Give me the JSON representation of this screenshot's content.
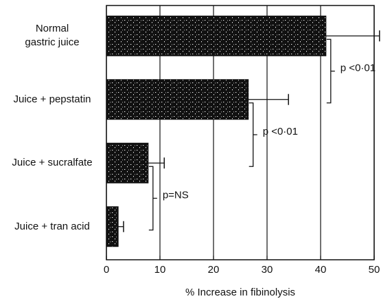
{
  "chart_data": {
    "type": "bar",
    "orientation": "horizontal",
    "categories": [
      "Normal\ngastric juice",
      "Juice + pepstatin",
      "Juice + sucralfate",
      "Juice + tran acid"
    ],
    "values": [
      41,
      26.5,
      7.8,
      2.2
    ],
    "errors": [
      10,
      7.5,
      3,
      1
    ],
    "color": "#111111",
    "xlabel": "% Increase in fibinolysis",
    "xlim": [
      0,
      50
    ],
    "xticks": [
      0,
      10,
      20,
      30,
      40,
      50
    ],
    "grid": true,
    "annotations": [
      "p <0·01",
      "p <0·01",
      "p=NS"
    ]
  }
}
